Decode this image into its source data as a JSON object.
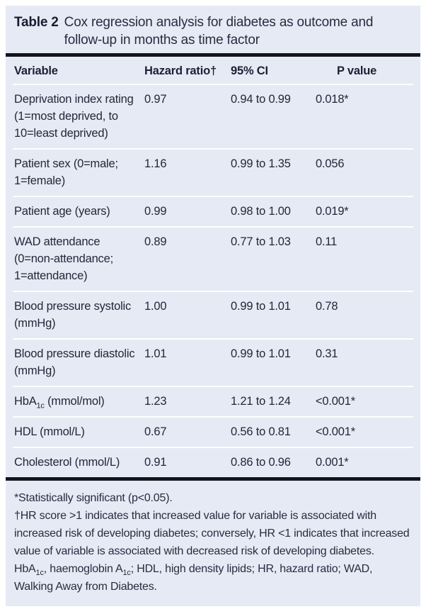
{
  "colors": {
    "panel_bg": "#e5eaf4",
    "rule": "#14141c",
    "separator": "#ffffff",
    "text": "#262639"
  },
  "table": {
    "label": "Table 2",
    "title": "Cox regression analysis for diabetes as outcome and follow-up in months as time factor",
    "columns": {
      "variable": "Variable",
      "hazard_ratio": "Hazard ratio†",
      "ci": "95% CI",
      "p_value": "P value"
    },
    "rows": [
      {
        "variable": "Deprivation index rating (1=most deprived, to 10=least deprived)",
        "hazard_ratio": "0.97",
        "ci": "0.94 to 0.99",
        "p_value": "0.018*"
      },
      {
        "variable": "Patient sex (0=male; 1=female)",
        "hazard_ratio": "1.16",
        "ci": "0.99 to 1.35",
        "p_value": "0.056"
      },
      {
        "variable": "Patient age (years)",
        "hazard_ratio": "0.99",
        "ci": "0.98 to 1.00",
        "p_value": "0.019*"
      },
      {
        "variable": "WAD attendance (0=non-attendance; 1=attendance)",
        "hazard_ratio": "0.89",
        "ci": "0.77 to 1.03",
        "p_value": "0.11"
      },
      {
        "variable": "Blood pressure systolic (mmHg)",
        "hazard_ratio": "1.00",
        "ci": "0.99 to 1.01",
        "p_value": "0.78"
      },
      {
        "variable": "Blood pressure diastolic (mmHg)",
        "hazard_ratio": "1.01",
        "ci": "0.99 to 1.01",
        "p_value": "0.31"
      },
      {
        "variable": "HbA[1c] (mmol/mol)",
        "hazard_ratio": "1.23",
        "ci": "1.21 to 1.24",
        "p_value": "<0.001*"
      },
      {
        "variable": "HDL (mmol/L)",
        "hazard_ratio": "0.67",
        "ci": "0.56 to 0.81",
        "p_value": "<0.001*"
      },
      {
        "variable": "Cholesterol (mmol/L)",
        "hazard_ratio": "0.91",
        "ci": "0.86 to 0.96",
        "p_value": "0.001*"
      }
    ],
    "footnotes": [
      "*Statistically significant (p<0.05).",
      "†HR score >1 indicates that increased value for variable is associated with increased risk of developing diabetes; conversely, HR <1 indicates that increased value of variable is associated with decreased risk of developing diabetes.",
      "HbA[1c], haemoglobin A[1c]; HDL, high density lipids; HR, hazard ratio; WAD, Walking Away from Diabetes."
    ]
  }
}
